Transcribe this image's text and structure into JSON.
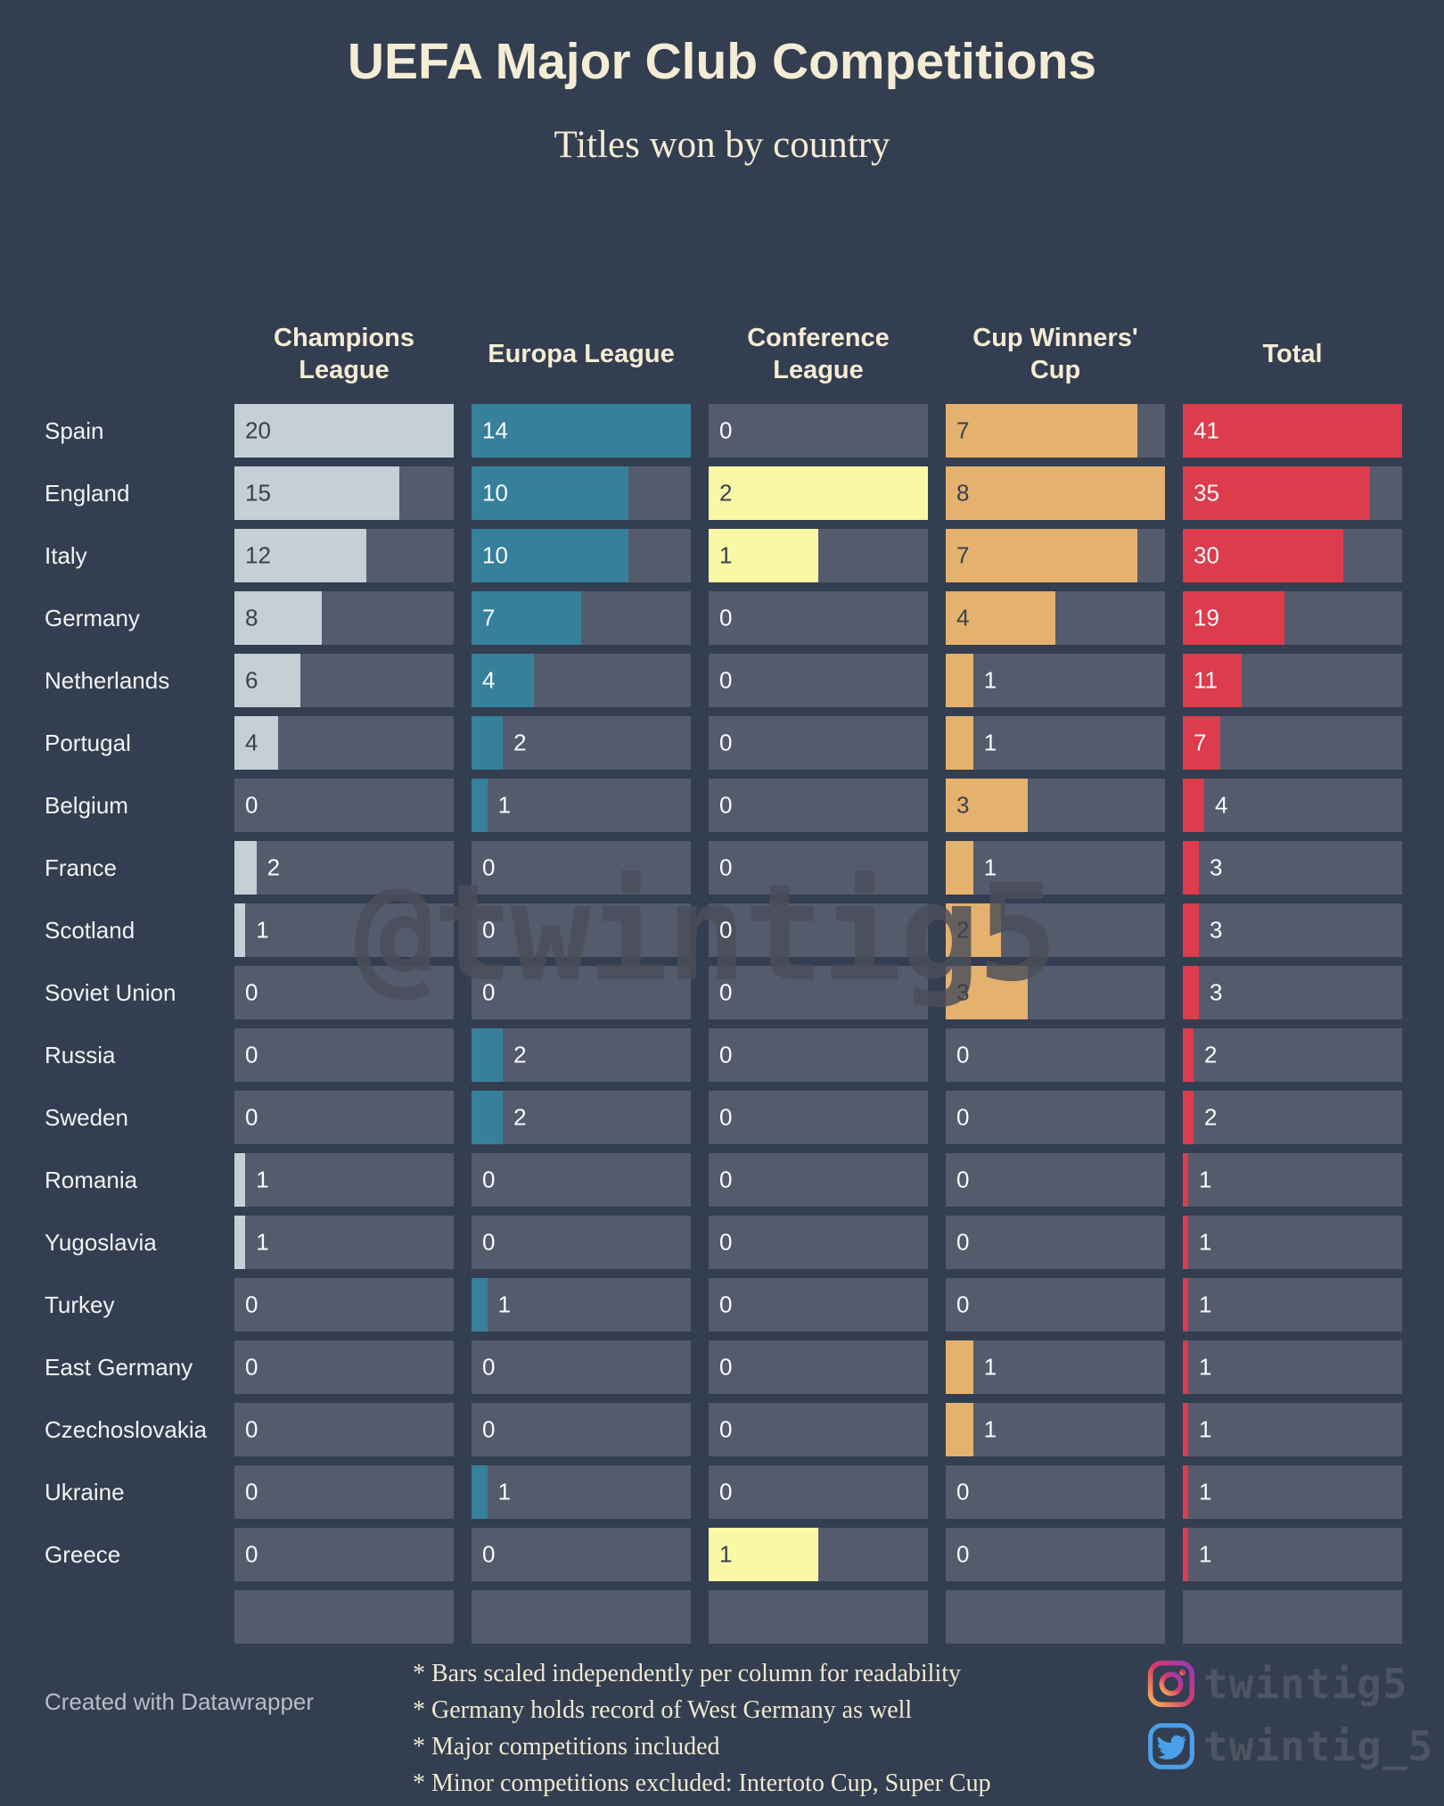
{
  "title": "UEFA Major Club Competitions",
  "subtitle": "Titles won by country",
  "watermark": "@twintig5",
  "chart_data": {
    "type": "bar",
    "orientation": "horizontal",
    "scaling_note": "bars scaled independently per column",
    "categories": [
      "Spain",
      "England",
      "Italy",
      "Germany",
      "Netherlands",
      "Portugal",
      "Belgium",
      "France",
      "Scotland",
      "Soviet Union",
      "Russia",
      "Sweden",
      "Romania",
      "Yugoslavia",
      "Turkey",
      "East Germany",
      "Czechoslovakia",
      "Ukraine",
      "Greece"
    ],
    "series": [
      {
        "name": "Champions League",
        "color": "#C5CFD6",
        "bar_label_color": "dark",
        "max": 20,
        "values": [
          20,
          15,
          12,
          8,
          6,
          4,
          0,
          2,
          1,
          0,
          0,
          0,
          1,
          1,
          0,
          0,
          0,
          0,
          0
        ]
      },
      {
        "name": "Europa League",
        "color": "#36809B",
        "bar_label_color": "light",
        "max": 14,
        "values": [
          14,
          10,
          10,
          7,
          4,
          2,
          1,
          0,
          0,
          0,
          2,
          2,
          0,
          0,
          1,
          0,
          0,
          1,
          0
        ]
      },
      {
        "name": "Conference League",
        "color": "#F9F8A6",
        "bar_label_color": "dark",
        "max": 2,
        "values": [
          0,
          2,
          1,
          0,
          0,
          0,
          0,
          0,
          0,
          0,
          0,
          0,
          0,
          0,
          0,
          0,
          0,
          0,
          1
        ]
      },
      {
        "name": "Cup Winners' Cup",
        "color": "#E4B26E",
        "bar_label_color": "dark",
        "max": 8,
        "values": [
          7,
          8,
          7,
          4,
          1,
          1,
          3,
          1,
          2,
          3,
          0,
          0,
          0,
          0,
          0,
          1,
          1,
          0,
          0
        ]
      },
      {
        "name": "Total",
        "color": "#DC3C4C",
        "bar_label_color": "light",
        "max": 41,
        "values": [
          41,
          35,
          30,
          19,
          11,
          7,
          4,
          3,
          3,
          3,
          2,
          2,
          1,
          1,
          1,
          1,
          1,
          1,
          1
        ]
      }
    ],
    "empty_trailing_row": true
  },
  "footer": {
    "credit": "Created with Datawrapper",
    "notes": [
      "* Bars scaled independently per column for readability",
      "* Germany holds record of West Germany as well",
      "* Major competitions included",
      "* Minor competitions excluded: Intertoto Cup, Super Cup"
    ],
    "social": [
      {
        "icon": "instagram-icon",
        "handle": "twintig5"
      },
      {
        "icon": "twitter-icon",
        "handle": "twintig_5"
      }
    ]
  },
  "colors": {
    "background": "#333E50",
    "track": "#535B6D",
    "header_text": "#F4ECD4",
    "country_text": "#F2F2F2",
    "value_dark": "#39414E",
    "value_light": "#FAFAFA",
    "watermark": "#4B4E59",
    "credit_text": "#B9BDC5",
    "notes_text": "#F0E8D0",
    "handle_text": "#4D5462",
    "twitter_blue": "#4A9FE8"
  }
}
